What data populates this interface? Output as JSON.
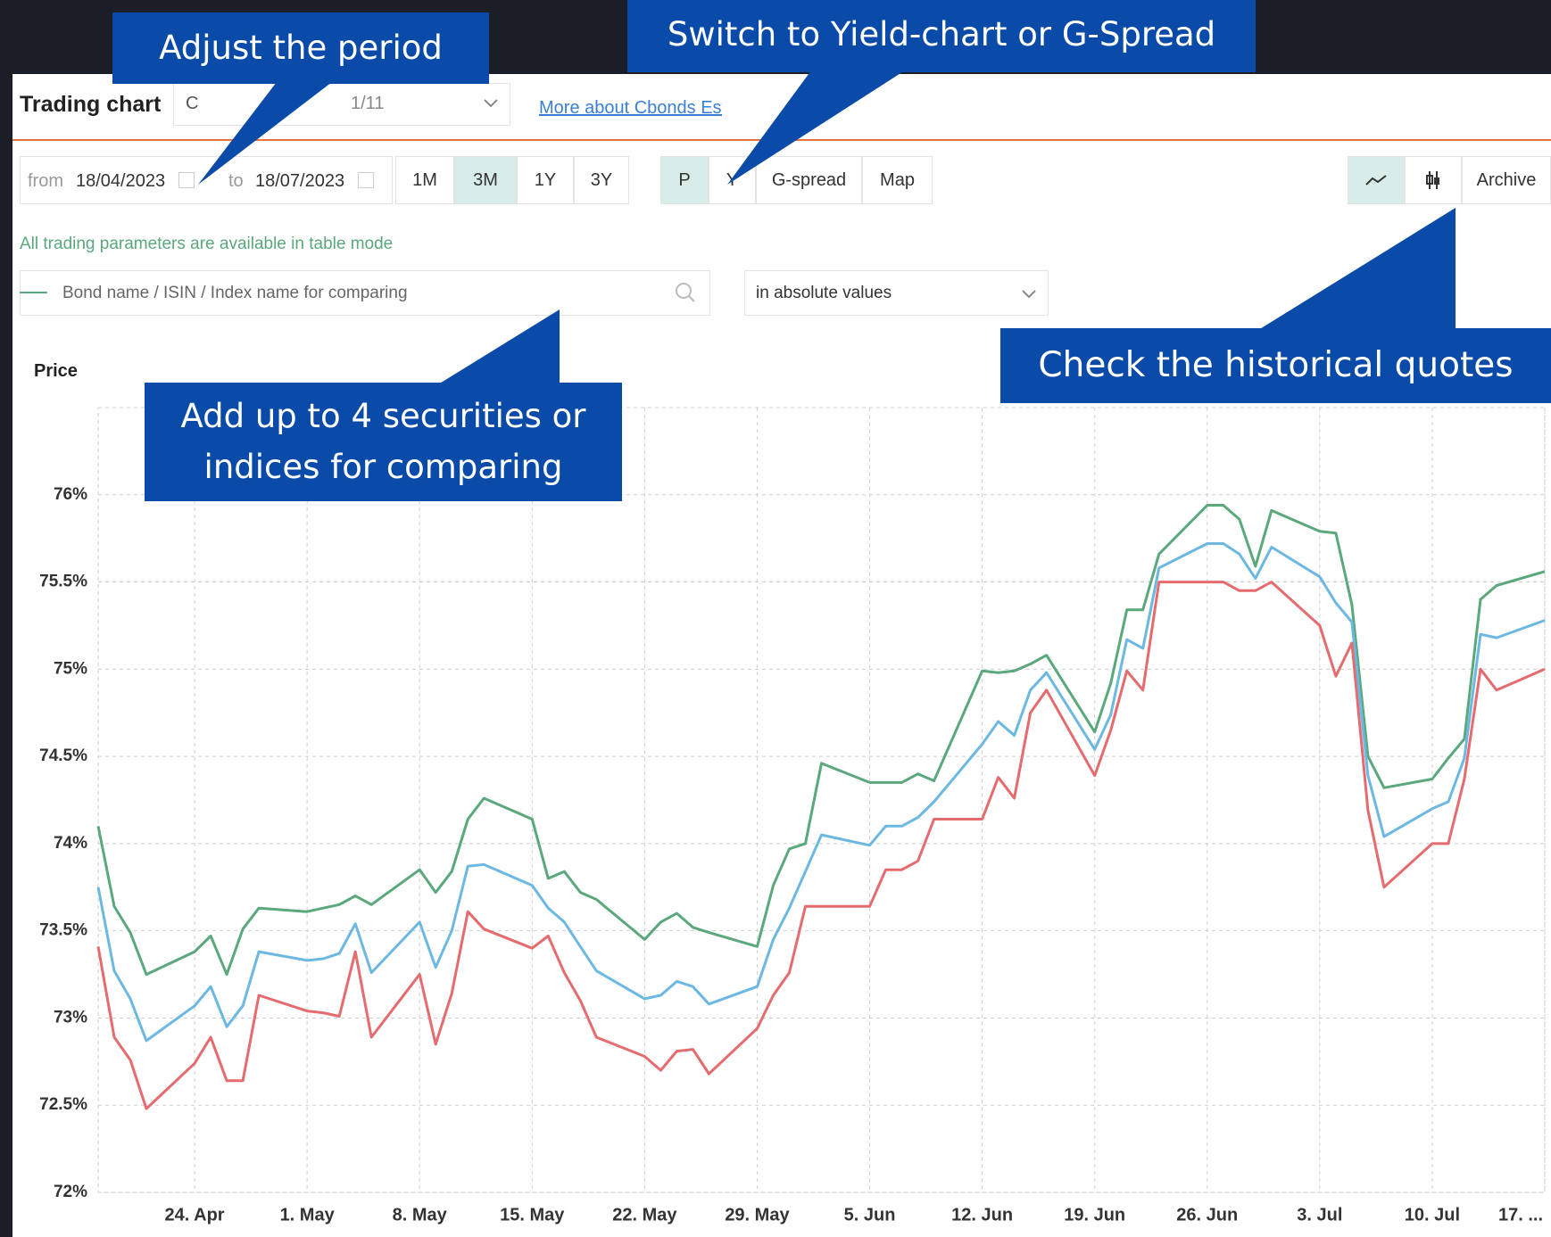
{
  "ui": {
    "header": "Trading chart",
    "dropdown_start": "C",
    "dropdown_end": "1/11",
    "link": "More about Cbonds Est",
    "from_label": "from",
    "from_date": "18/04/2023",
    "to_label": "to",
    "to_date": "18/07/2023",
    "periods": [
      "1M",
      "3M",
      "1Y",
      "3Y"
    ],
    "modes": [
      "P",
      "Y",
      "G-spread",
      "Map"
    ],
    "archive": "Archive",
    "note": "All trading parameters are available in table mode",
    "search_placeholder": "Bond name / ISIN / Index name for comparing",
    "select_value": "in absolute values",
    "y_title": "Price"
  },
  "callouts": [
    {
      "lines": [
        "Adjust the period"
      ]
    },
    {
      "lines": [
        "Switch to Yield-chart or G-Spread"
      ]
    },
    {
      "lines": [
        "Add up to 4 securities or",
        "indices for comparing"
      ]
    },
    {
      "lines": [
        "Check the historical quotes"
      ]
    }
  ],
  "chart_data": {
    "type": "line",
    "x": [
      "2023-04-18",
      "2023-04-19",
      "2023-04-20",
      "2023-04-21",
      "2023-04-24",
      "2023-04-25",
      "2023-04-26",
      "2023-04-27",
      "2023-04-28",
      "2023-05-01",
      "2023-05-02",
      "2023-05-03",
      "2023-05-04",
      "2023-05-05",
      "2023-05-08",
      "2023-05-09",
      "2023-05-10",
      "2023-05-11",
      "2023-05-12",
      "2023-05-15",
      "2023-05-16",
      "2023-05-17",
      "2023-05-18",
      "2023-05-19",
      "2023-05-22",
      "2023-05-23",
      "2023-05-24",
      "2023-05-25",
      "2023-05-26",
      "2023-05-29",
      "2023-05-30",
      "2023-05-31",
      "2023-06-01",
      "2023-06-02",
      "2023-06-05",
      "2023-06-06",
      "2023-06-07",
      "2023-06-08",
      "2023-06-09",
      "2023-06-12",
      "2023-06-13",
      "2023-06-14",
      "2023-06-15",
      "2023-06-16",
      "2023-06-19",
      "2023-06-20",
      "2023-06-21",
      "2023-06-22",
      "2023-06-23",
      "2023-06-26",
      "2023-06-27",
      "2023-06-28",
      "2023-06-29",
      "2023-06-30",
      "2023-07-03",
      "2023-07-04",
      "2023-07-05",
      "2023-07-06",
      "2023-07-07",
      "2023-07-10",
      "2023-07-11",
      "2023-07-12",
      "2023-07-13",
      "2023-07-14",
      "2023-07-17"
    ],
    "series": [
      {
        "color": "#5aa87c",
        "values": [
          74.1,
          73.64,
          73.49,
          73.25,
          73.38,
          73.47,
          73.25,
          73.51,
          73.63,
          73.61,
          73.63,
          73.65,
          73.7,
          73.65,
          73.85,
          73.72,
          73.84,
          74.14,
          74.26,
          74.14,
          73.8,
          73.84,
          73.72,
          73.68,
          73.45,
          73.55,
          73.6,
          73.52,
          73.49,
          73.41,
          73.76,
          73.97,
          74.0,
          74.46,
          74.35,
          74.35,
          74.35,
          74.4,
          74.36,
          74.99,
          74.98,
          74.99,
          75.03,
          75.08,
          74.64,
          74.92,
          75.34,
          75.34,
          75.66,
          75.94,
          75.94,
          75.86,
          75.59,
          75.91,
          75.79,
          75.78,
          75.37,
          74.5,
          74.32,
          74.37,
          74.49,
          74.6,
          75.4,
          75.48,
          75.56
        ]
      },
      {
        "color": "#6cb8e2",
        "values": [
          73.75,
          73.27,
          73.11,
          72.87,
          73.07,
          73.18,
          72.95,
          73.07,
          73.38,
          73.33,
          73.34,
          73.37,
          73.54,
          73.26,
          73.55,
          73.29,
          73.5,
          73.87,
          73.88,
          73.76,
          73.63,
          73.55,
          73.41,
          73.27,
          73.11,
          73.13,
          73.21,
          73.18,
          73.08,
          73.18,
          73.45,
          73.63,
          73.84,
          74.05,
          73.99,
          74.1,
          74.1,
          74.15,
          74.24,
          74.57,
          74.7,
          74.62,
          74.88,
          74.98,
          74.54,
          74.74,
          75.17,
          75.12,
          75.58,
          75.72,
          75.72,
          75.66,
          75.52,
          75.7,
          75.53,
          75.38,
          75.27,
          74.39,
          74.04,
          74.2,
          74.24,
          74.49,
          75.2,
          75.18,
          75.28
        ]
      },
      {
        "color": "#e56b6f",
        "values": [
          73.41,
          72.89,
          72.76,
          72.48,
          72.74,
          72.89,
          72.64,
          72.64,
          73.13,
          73.04,
          73.03,
          73.01,
          73.38,
          72.89,
          73.25,
          72.85,
          73.14,
          73.61,
          73.51,
          73.4,
          73.47,
          73.26,
          73.1,
          72.89,
          72.78,
          72.7,
          72.81,
          72.82,
          72.68,
          72.94,
          73.13,
          73.26,
          73.64,
          73.64,
          73.64,
          73.85,
          73.85,
          73.9,
          74.14,
          74.14,
          74.38,
          74.26,
          74.75,
          74.88,
          74.39,
          74.65,
          74.99,
          74.88,
          75.5,
          75.5,
          75.5,
          75.45,
          75.45,
          75.5,
          75.25,
          74.96,
          75.15,
          74.19,
          73.75,
          74.0,
          74.0,
          74.37,
          75.0,
          74.88,
          75.0
        ]
      }
    ],
    "xlim": [
      "2023-04-18",
      "2023-07-17"
    ],
    "xticks": [
      {
        "value": "2023-04-24",
        "label": "24. Apr"
      },
      {
        "value": "2023-05-01",
        "label": "1. May"
      },
      {
        "value": "2023-05-08",
        "label": "8. May"
      },
      {
        "value": "2023-05-15",
        "label": "15. May"
      },
      {
        "value": "2023-05-22",
        "label": "22. May"
      },
      {
        "value": "2023-05-29",
        "label": "29. May"
      },
      {
        "value": "2023-06-05",
        "label": "5. Jun"
      },
      {
        "value": "2023-06-12",
        "label": "12. Jun"
      },
      {
        "value": "2023-06-19",
        "label": "19. Jun"
      },
      {
        "value": "2023-06-26",
        "label": "26. Jun"
      },
      {
        "value": "2023-07-03",
        "label": "3. Jul"
      },
      {
        "value": "2023-07-10",
        "label": "10. Jul"
      },
      {
        "value": "2023-07-17",
        "label": "17. ..."
      }
    ],
    "ylim": [
      72,
      76.5
    ],
    "yticks": [
      {
        "value": 72,
        "label": "72%"
      },
      {
        "value": 72.5,
        "label": "72.5%"
      },
      {
        "value": 73,
        "label": "73%"
      },
      {
        "value": 73.5,
        "label": "73.5%"
      },
      {
        "value": 74,
        "label": "74%"
      },
      {
        "value": 74.5,
        "label": "74.5%"
      },
      {
        "value": 75,
        "label": "75%"
      },
      {
        "value": 75.5,
        "label": "75.5%"
      },
      {
        "value": 76,
        "label": "76%"
      }
    ],
    "grid": true
  }
}
